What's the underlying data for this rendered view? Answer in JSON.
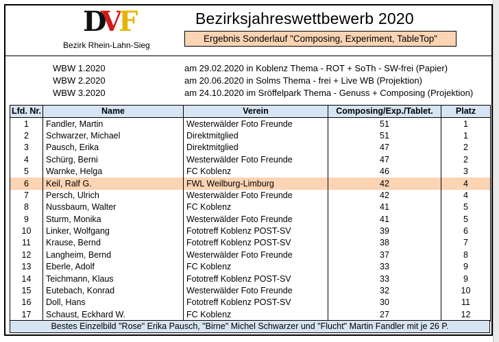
{
  "header": {
    "logo": {
      "d": "D",
      "v": "V",
      "f": "F"
    },
    "district": "Bezirk Rhein-Lahn-Sieg",
    "title": "Bezirksjahreswettbewerb 2020",
    "subtitle": "Ergebnis Sonderlauf \"Composing, Experiment, TableTop\""
  },
  "events": [
    {
      "name": "WBW 1.2020",
      "desc": "am 29.02.2020 in Koblenz  Thema - ROT + SoTh - SW-frei (Papier)"
    },
    {
      "name": "WBW 2.2020",
      "desc": "am 20.06.2020 in Solms Thema - frei  + Live WB (Projektion)"
    },
    {
      "name": "WBW 3.2020",
      "desc": "am 24.10.2020 im Sröffelpark Thema - Genuss + Composing (Projektion)"
    }
  ],
  "table": {
    "columns": [
      "Lfd. Nr.",
      "Name",
      "Verein",
      "Composing/Exp./Tablet.",
      "Platz"
    ],
    "rows": [
      {
        "nr": "1",
        "name": "Fandler, Martin",
        "verein": "Westerwälder Foto Freunde",
        "points": "51",
        "platz": "1"
      },
      {
        "nr": "2",
        "name": "Schwarzer, Michael",
        "verein": "Direktmitglied",
        "points": "51",
        "platz": "1"
      },
      {
        "nr": "3",
        "name": "Pausch, Erika",
        "verein": "Direktmitglied",
        "points": "47",
        "platz": "2"
      },
      {
        "nr": "4",
        "name": "Schürg, Berni",
        "verein": "Westerwälder Foto Freunde",
        "points": "47",
        "platz": "2"
      },
      {
        "nr": "5",
        "name": "Warnke, Helga",
        "verein": "FC Koblenz",
        "points": "46",
        "platz": "3"
      },
      {
        "nr": "6",
        "name": "Keil, Ralf G.",
        "verein": "FWL Weilburg-Limburg",
        "points": "42",
        "platz": "4",
        "highlight": true
      },
      {
        "nr": "7",
        "name": "Persch, Ulrich",
        "verein": "Westerwälder Foto Freunde",
        "points": "42",
        "platz": "4"
      },
      {
        "nr": "8",
        "name": "Nussbaum, Walter",
        "verein": "FC Koblenz",
        "points": "41",
        "platz": "5"
      },
      {
        "nr": "9",
        "name": "Sturm, Monika",
        "verein": "Westerwälder Foto Freunde",
        "points": "41",
        "platz": "5"
      },
      {
        "nr": "10",
        "name": "Linker, Wolfgang",
        "verein": "Fototreff Koblenz POST-SV",
        "points": "39",
        "platz": "6"
      },
      {
        "nr": "11",
        "name": "Krause, Bernd",
        "verein": "Fototreff Koblenz POST-SV",
        "points": "38",
        "platz": "7"
      },
      {
        "nr": "12",
        "name": "Langheim, Bernd",
        "verein": "Westerwälder Foto Freunde",
        "points": "37",
        "platz": "8"
      },
      {
        "nr": "13",
        "name": "Eberle, Adolf",
        "verein": "FC Koblenz",
        "points": "33",
        "platz": "9"
      },
      {
        "nr": "14",
        "name": "Teichmann, Klaus",
        "verein": "Fototreff Koblenz POST-SV",
        "points": "33",
        "platz": "9"
      },
      {
        "nr": "15",
        "name": "Eutebach, Konrad",
        "verein": "Westerwälder Foto Freunde",
        "points": "32",
        "platz": "10"
      },
      {
        "nr": "16",
        "name": "Doll, Hans",
        "verein": "Fototreff Koblenz POST-SV",
        "points": "30",
        "platz": "11"
      },
      {
        "nr": "17",
        "name": "Schaust, Eckhard W.",
        "verein": "FC Koblenz",
        "points": "27",
        "platz": "12"
      }
    ],
    "footer": "Bestes Einzelbild \"Rose\" Erika Pausch, \"Birne\" Michel Schwarzer und \"Flucht\" Martin Fandler mit je 26 P."
  },
  "colors": {
    "header_fill": "#d6e4f3",
    "highlight_fill": "#fbd4b4",
    "logo_d": "#111111",
    "logo_v": "#d01c1c",
    "logo_f": "#e5b400"
  }
}
